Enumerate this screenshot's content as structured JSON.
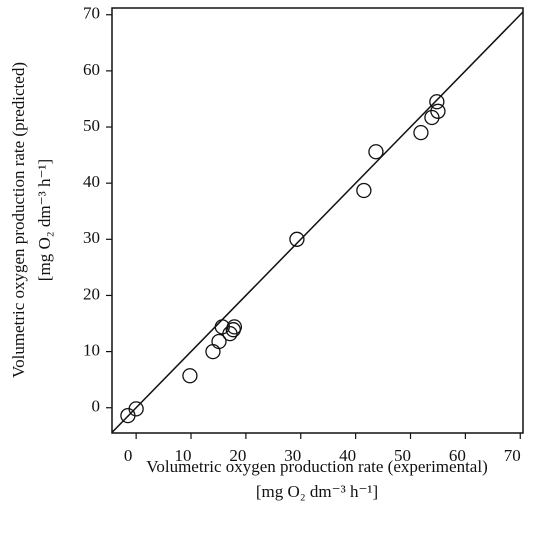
{
  "chart_data": {
    "type": "scatter",
    "x_label": "Volumetric oxygen production rate (experimental)",
    "x_unit": "[mg O₂ dm⁻³ h⁻¹]",
    "y_label": "Volumetric oxygen production rate (predicted)",
    "y_unit": "[mg O₂ dm⁻³ h⁻¹]",
    "x": [
      -1.5,
      0,
      9.8,
      14,
      15.1,
      15.7,
      17.1,
      17.7,
      17.9,
      29.3,
      41.5,
      43.7,
      51.9,
      53.9,
      55,
      54.8
    ],
    "series": [
      {
        "name": null,
        "color": "#111111",
        "values": [
          -1.4,
          -0.2,
          5.7,
          10,
          11.8,
          14.4,
          13.2,
          13.9,
          14.4,
          30,
          38.7,
          45.6,
          49,
          51.7,
          52.8,
          54.5
        ]
      }
    ],
    "xlim": [
      -4.4,
      70.5
    ],
    "ylim": [
      -4.5,
      71.2
    ],
    "xticks": [
      0,
      10,
      20,
      30,
      40,
      50,
      60,
      70
    ],
    "yticks": [
      0,
      10,
      20,
      30,
      40,
      50,
      60,
      70
    ],
    "grid": false
  }
}
